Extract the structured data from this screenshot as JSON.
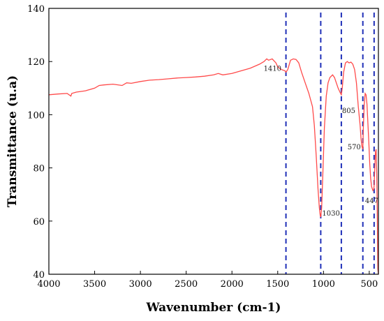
{
  "chart_data": {
    "type": "line",
    "title": "",
    "xlabel": "Wavenumber (cm-1)",
    "ylabel": "Transmittance (u.a)",
    "xlim": [
      4000,
      400
    ],
    "x_reversed": true,
    "ylim": [
      40,
      140
    ],
    "grid": false,
    "legend": "none",
    "xticks": [
      4000,
      3500,
      3000,
      2500,
      2000,
      1500,
      1000,
      500
    ],
    "yticks": [
      40,
      60,
      80,
      100,
      120,
      140
    ],
    "series_color": "#ff4a4a",
    "reference_line_color": "#1f2fb8",
    "series": [
      {
        "x": [
          4000,
          3900,
          3800,
          3760,
          3750,
          3700,
          3600,
          3500,
          3450,
          3400,
          3300,
          3200,
          3150,
          3100,
          3000,
          2900,
          2800,
          2700,
          2600,
          2500,
          2400,
          2300,
          2200,
          2150,
          2100,
          2000,
          1900,
          1800,
          1700,
          1650,
          1620,
          1600,
          1560,
          1520,
          1500,
          1460,
          1420,
          1410,
          1390,
          1360,
          1330,
          1300,
          1270,
          1240,
          1200,
          1160,
          1120,
          1100,
          1080,
          1060,
          1045,
          1035,
          1030,
          1020,
          1005,
          990,
          970,
          950,
          930,
          900,
          880,
          860,
          840,
          820,
          810,
          805,
          795,
          780,
          760,
          740,
          720,
          700,
          680,
          660,
          640,
          620,
          600,
          590,
          580,
          575,
          570,
          565,
          555,
          545,
          535,
          525,
          515,
          505,
          495,
          485,
          475,
          460,
          450,
          447,
          440,
          432,
          425,
          418,
          412,
          406,
          400
        ],
        "y": [
          107.5,
          107.8,
          108,
          107,
          108,
          108.5,
          109,
          110,
          111,
          111.2,
          111.5,
          111,
          112,
          111.8,
          112.5,
          113,
          113.2,
          113.5,
          113.8,
          114,
          114.2,
          114.5,
          115,
          115.5,
          115,
          115.5,
          116.5,
          117.5,
          119,
          120,
          121,
          120.5,
          121,
          119.5,
          118,
          117,
          116.5,
          116,
          117,
          120.5,
          121,
          120.8,
          119.5,
          116,
          112,
          108,
          103,
          96,
          85,
          72,
          65,
          62,
          61.5,
          65,
          80,
          95,
          107,
          112,
          114,
          115,
          114,
          112,
          110,
          108.5,
          107.8,
          107.5,
          110,
          116,
          119.5,
          120,
          119.5,
          119.8,
          119,
          117,
          112,
          103,
          96,
          91,
          88,
          87.5,
          87,
          95,
          104,
          108,
          107.5,
          104,
          97,
          90,
          82,
          76,
          73,
          71.5,
          72,
          73,
          80,
          86,
          87,
          78,
          62,
          42,
          40
        ]
      }
    ],
    "reference_lines": [
      1410,
      1030,
      805,
      570,
      447
    ],
    "annotations": [
      {
        "text": "1410",
        "x": 1410,
        "y": 116.5
      },
      {
        "text": "1030",
        "x": 1030,
        "y": 61.5
      },
      {
        "text": "805",
        "x": 805,
        "y": 107.5
      },
      {
        "text": "570",
        "x": 570,
        "y": 87
      },
      {
        "text": "447",
        "x": 447,
        "y": 72
      }
    ]
  }
}
